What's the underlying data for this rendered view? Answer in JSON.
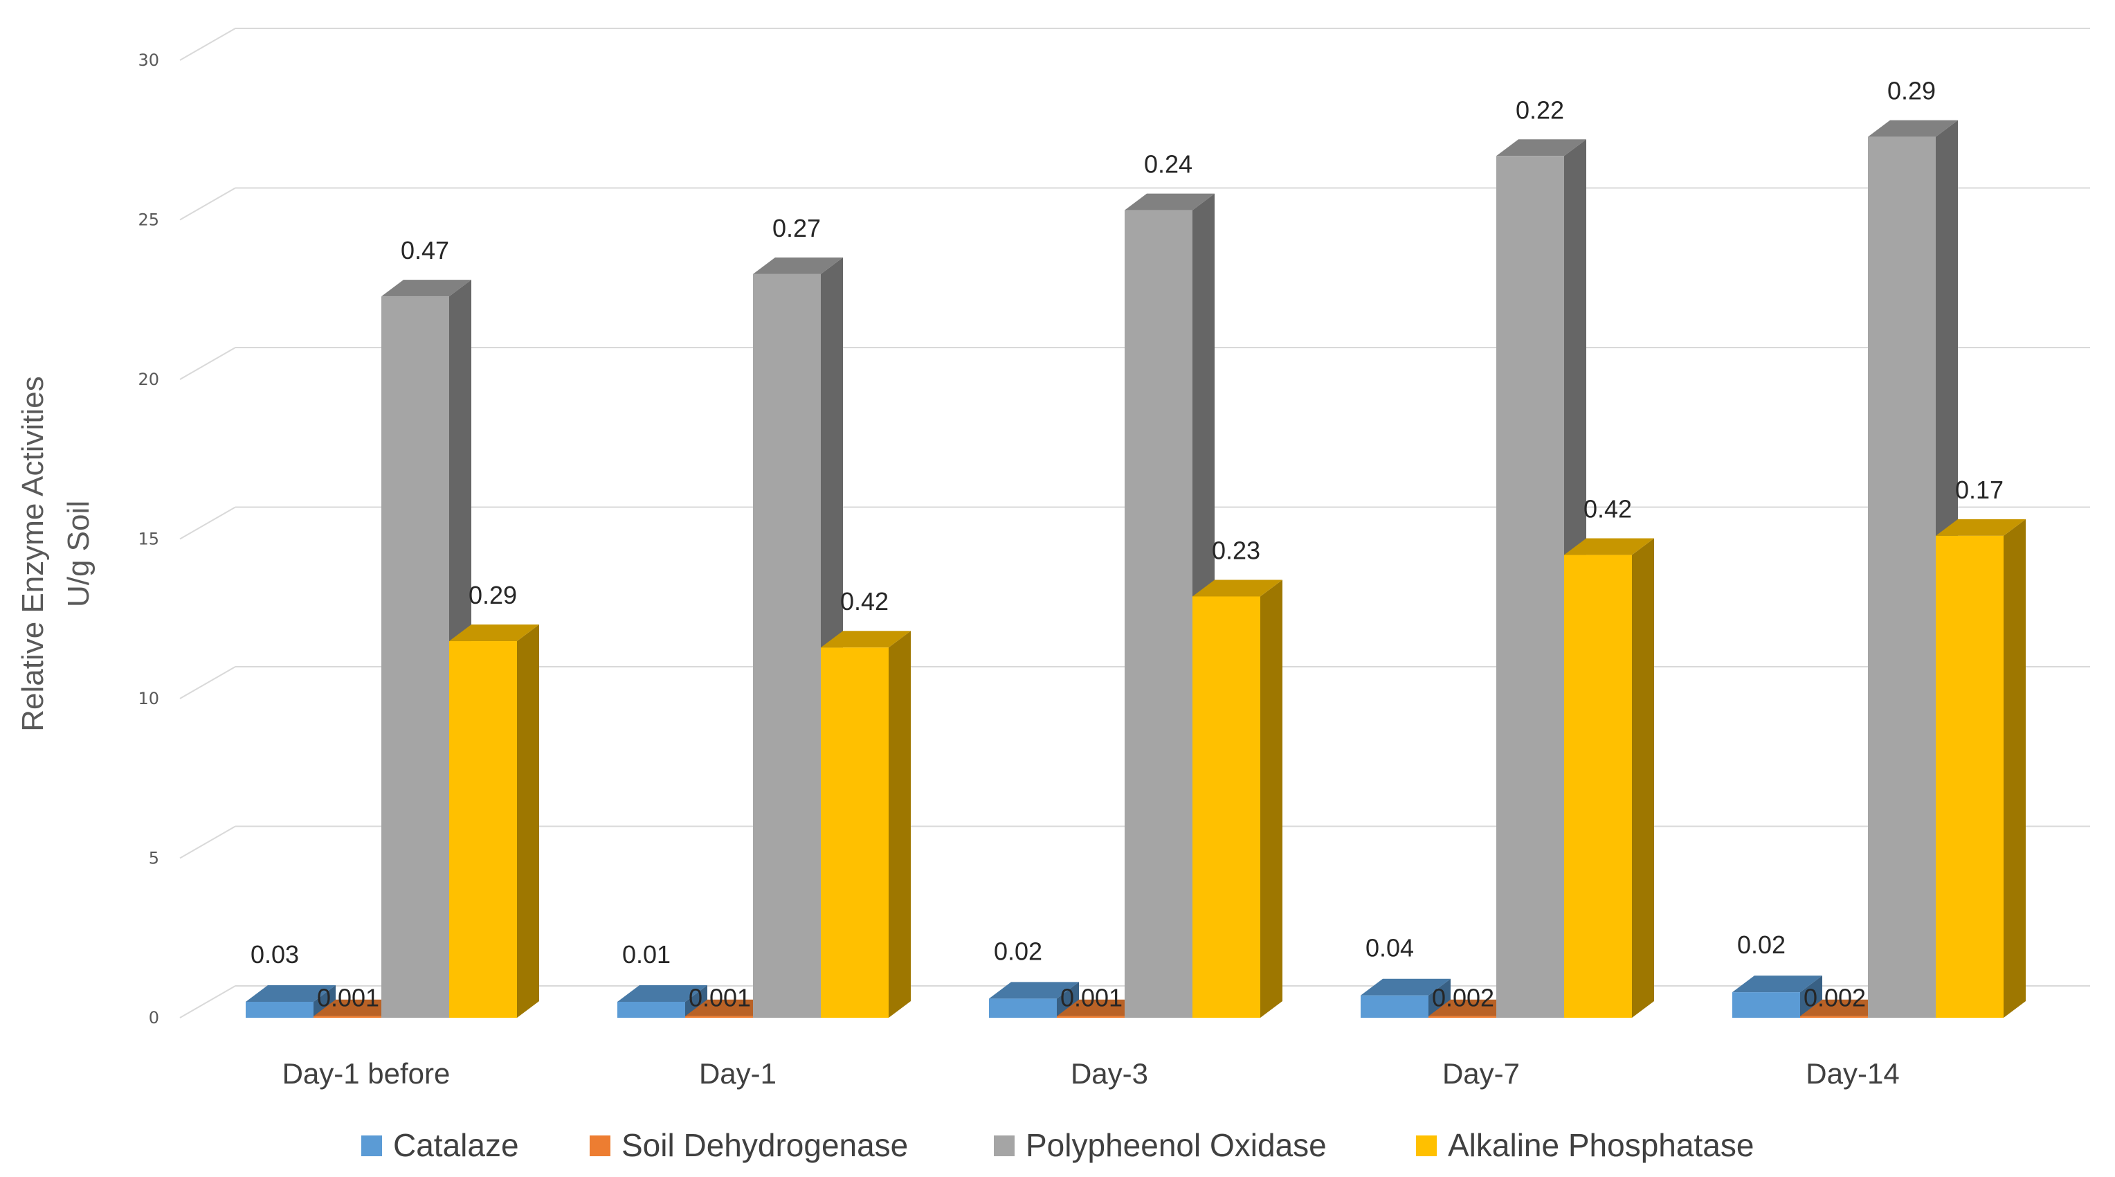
{
  "chart_data": {
    "type": "bar",
    "title": "",
    "xlabel": "",
    "ylabel": [
      "Relative Enzyme Activities",
      "U/g Soil"
    ],
    "ylim": [
      0,
      30
    ],
    "yticks": [
      "0",
      "5",
      "10",
      "15",
      "20",
      "25",
      "30"
    ],
    "grid": true,
    "legend_position": "bottom",
    "categories": [
      "Day-1 before",
      "Day-1",
      "Day-3",
      "Day-7",
      "Day-14"
    ],
    "series": [
      {
        "name": "Catalaze",
        "color": "#5b9bd5",
        "values": [
          0.5,
          0.5,
          0.6,
          0.7,
          0.8
        ],
        "labels": [
          "0.03",
          "0.01",
          "0.02",
          "0.04",
          "0.02"
        ]
      },
      {
        "name": "Soil Dehydrogenase",
        "color": "#ed7d31",
        "values": [
          0.05,
          0.05,
          0.05,
          0.05,
          0.05
        ],
        "labels": [
          "0.001",
          "0.001",
          "0.001",
          "0.002",
          "0.002"
        ]
      },
      {
        "name": "Polypheenol Oxidase",
        "color": "#a5a5a5",
        "values": [
          22.6,
          23.3,
          25.3,
          27.0,
          27.6
        ],
        "labels": [
          "0.47",
          "0.27",
          "0.24",
          "0.22",
          "0.29"
        ]
      },
      {
        "name": "Alkaline Phosphatase",
        "color": "#ffc000",
        "values": [
          11.8,
          11.6,
          13.2,
          14.5,
          15.1
        ],
        "labels": [
          "0.29",
          "0.42",
          "0.23",
          "0.42",
          "0.17"
        ]
      }
    ]
  }
}
